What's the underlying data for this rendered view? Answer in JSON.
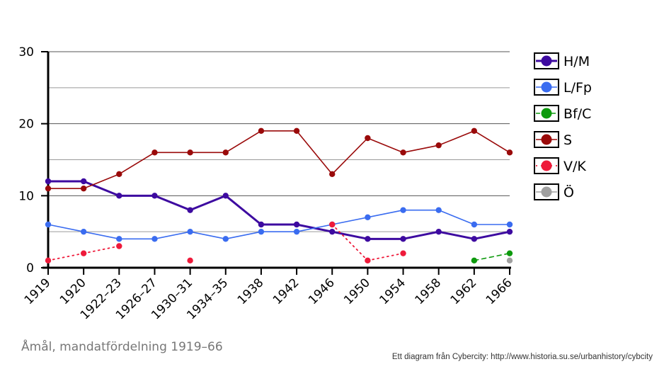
{
  "chart_data": {
    "type": "line",
    "title": "Åmål, mandatfördelning 1919–66",
    "credit": "Ett diagram från Cybercity: http://www.historia.su.se/urbanhistory/cybcity",
    "categories": [
      "1919",
      "1920",
      "1922–23",
      "1926–27",
      "1930–31",
      "1934–35",
      "1938",
      "1942",
      "1946",
      "1950",
      "1954",
      "1958",
      "1962",
      "1966"
    ],
    "ylim": [
      0,
      30
    ],
    "yticks": [
      "0",
      "10",
      "20",
      "30"
    ],
    "grid": true,
    "legend_position": "right",
    "series": [
      {
        "name": "H/M",
        "color": "#3d0aa0",
        "style": "solid",
        "width": 3,
        "values": [
          12,
          12,
          10,
          10,
          8,
          10,
          6,
          6,
          5,
          4,
          4,
          5,
          4,
          5
        ]
      },
      {
        "name": "L/Fp",
        "color": "#3a6cf0",
        "style": "solid",
        "width": 1.6,
        "values": [
          6,
          5,
          4,
          4,
          5,
          4,
          5,
          5,
          6,
          7,
          8,
          8,
          6,
          6
        ]
      },
      {
        "name": "Bf/C",
        "color": "#0d9a0d",
        "style": "dashed",
        "width": 1.6,
        "values": [
          null,
          null,
          null,
          null,
          null,
          null,
          null,
          null,
          null,
          null,
          null,
          null,
          1,
          2
        ]
      },
      {
        "name": "S",
        "color": "#9a0a0a",
        "style": "solid",
        "width": 1.6,
        "values": [
          11,
          11,
          13,
          16,
          16,
          16,
          19,
          19,
          13,
          18,
          16,
          17,
          19,
          16
        ]
      },
      {
        "name": "V/K",
        "color": "#ee1a3a",
        "style": "dotted",
        "width": 1.8,
        "values": [
          1,
          2,
          3,
          null,
          1,
          null,
          null,
          null,
          6,
          1,
          2,
          null,
          null,
          null
        ]
      },
      {
        "name": "Ö",
        "color": "#a0a0a0",
        "style": "solid",
        "width": 1.6,
        "values": [
          null,
          null,
          null,
          null,
          null,
          null,
          null,
          null,
          null,
          null,
          null,
          null,
          null,
          1
        ]
      }
    ]
  }
}
